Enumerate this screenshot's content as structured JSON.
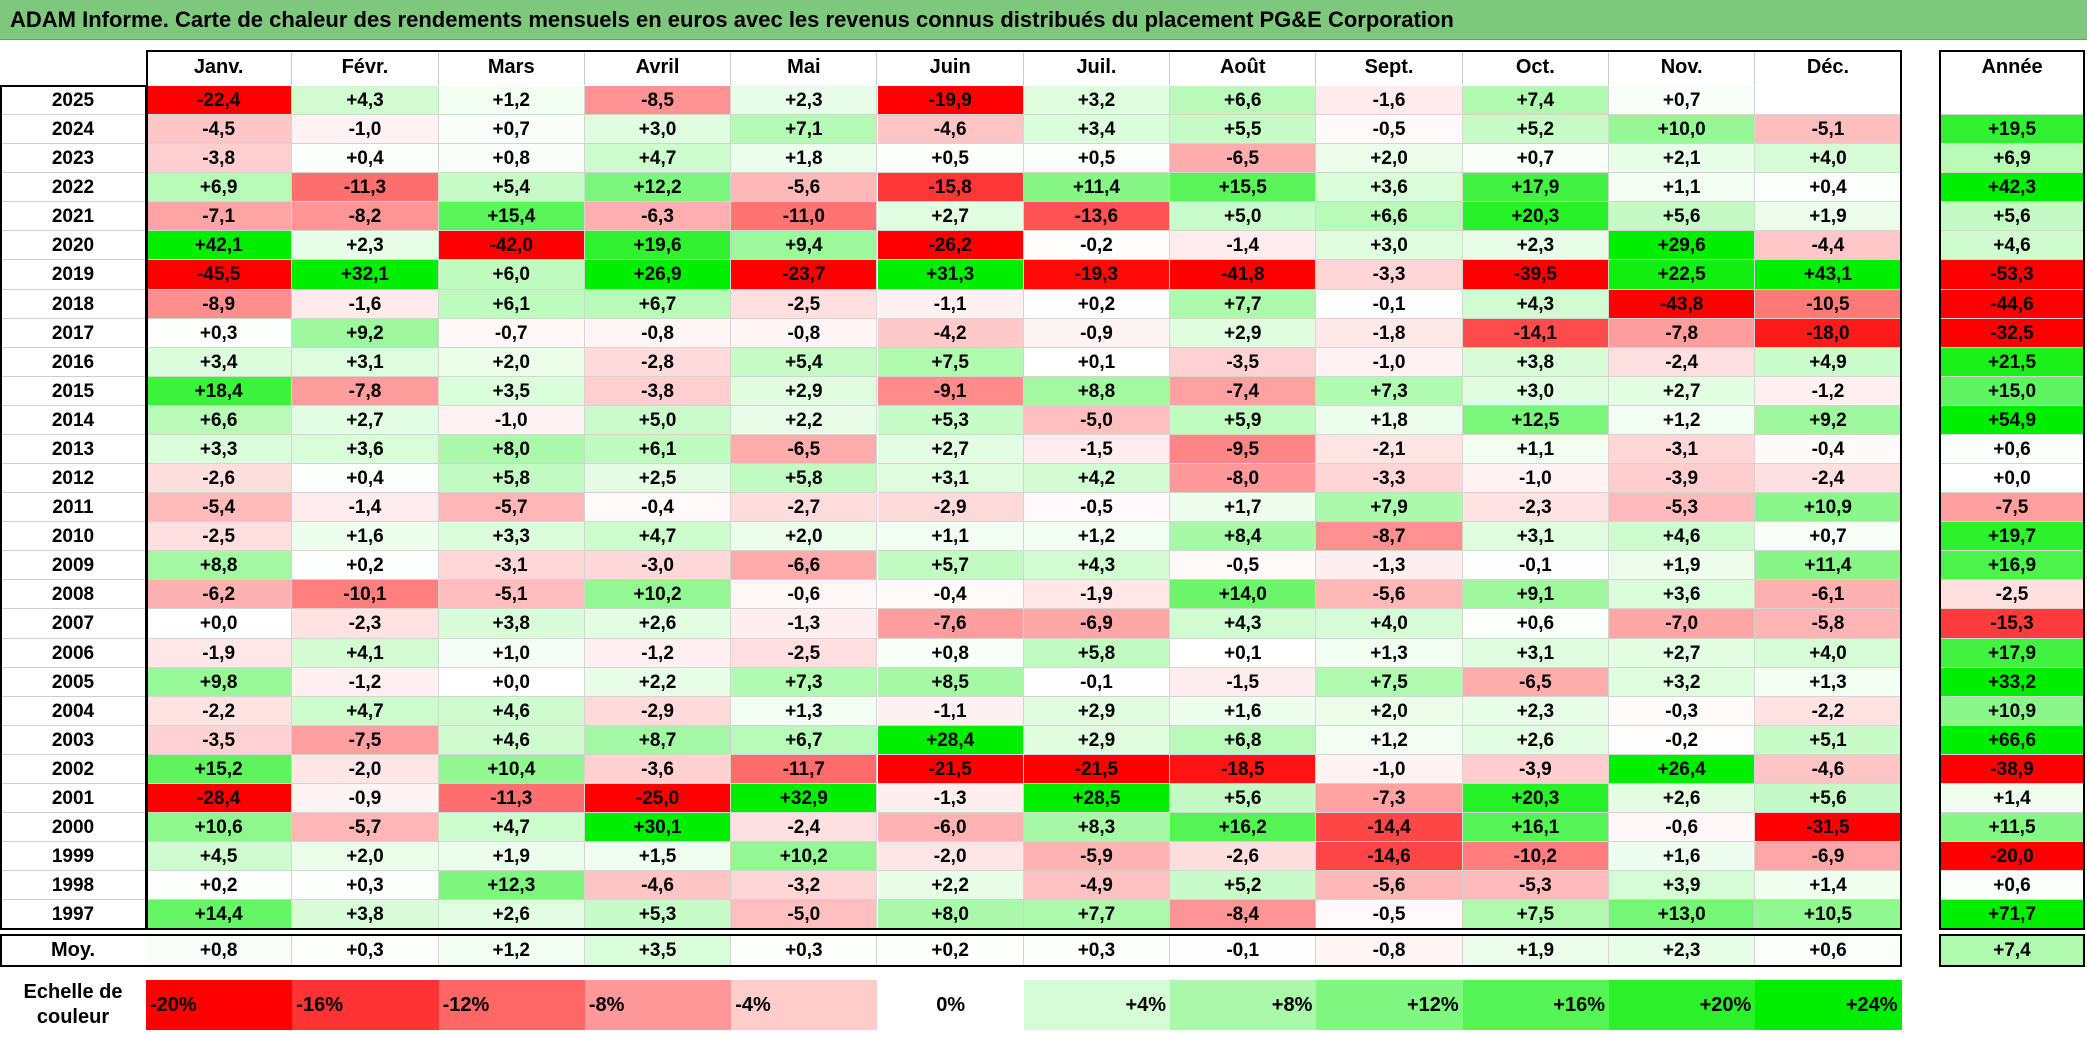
{
  "title": "ADAM Informe. Carte de chaleur des rendements mensuels en euros avec les revenus connus distribués du placement PG&E Corporation",
  "chart_data": {
    "type": "heatmap",
    "title": "ADAM Informe. Carte de chaleur des rendements mensuels en euros avec les revenus connus distribués du placement PG&E Corporation",
    "columns": [
      "Janv.",
      "Févr.",
      "Mars",
      "Avril",
      "Mai",
      "Juin",
      "Juil.",
      "Août",
      "Sept.",
      "Oct.",
      "Nov.",
      "Déc."
    ],
    "year_column_label": "Année",
    "rows": [
      {
        "year": "2025",
        "months": [
          "-22,4",
          "+4,3",
          "+1,2",
          "-8,5",
          "+2,3",
          "-19,9",
          "+3,2",
          "+6,6",
          "-1,6",
          "+7,4",
          "+0,7",
          ""
        ],
        "annual": ""
      },
      {
        "year": "2024",
        "months": [
          "-4,5",
          "-1,0",
          "+0,7",
          "+3,0",
          "+7,1",
          "-4,6",
          "+3,4",
          "+5,5",
          "-0,5",
          "+5,2",
          "+10,0",
          "-5,1"
        ],
        "annual": "+19,5"
      },
      {
        "year": "2023",
        "months": [
          "-3,8",
          "+0,4",
          "+0,8",
          "+4,7",
          "+1,8",
          "+0,5",
          "+0,5",
          "-6,5",
          "+2,0",
          "+0,7",
          "+2,1",
          "+4,0"
        ],
        "annual": "+6,9"
      },
      {
        "year": "2022",
        "months": [
          "+6,9",
          "-11,3",
          "+5,4",
          "+12,2",
          "-5,6",
          "-15,8",
          "+11,4",
          "+15,5",
          "+3,6",
          "+17,9",
          "+1,1",
          "+0,4"
        ],
        "annual": "+42,3"
      },
      {
        "year": "2021",
        "months": [
          "-7,1",
          "-8,2",
          "+15,4",
          "-6,3",
          "-11,0",
          "+2,7",
          "-13,6",
          "+5,0",
          "+6,6",
          "+20,3",
          "+5,6",
          "+1,9"
        ],
        "annual": "+5,6"
      },
      {
        "year": "2020",
        "months": [
          "+42,1",
          "+2,3",
          "-42,0",
          "+19,6",
          "+9,4",
          "-26,2",
          "-0,2",
          "-1,4",
          "+3,0",
          "+2,3",
          "+29,6",
          "-4,4"
        ],
        "annual": "+4,6"
      },
      {
        "year": "2019",
        "months": [
          "-45,5",
          "+32,1",
          "+6,0",
          "+26,9",
          "-23,7",
          "+31,3",
          "-19,3",
          "-41,8",
          "-3,3",
          "-39,5",
          "+22,5",
          "+43,1"
        ],
        "annual": "-53,3"
      },
      {
        "year": "2018",
        "months": [
          "-8,9",
          "-1,6",
          "+6,1",
          "+6,7",
          "-2,5",
          "-1,1",
          "+0,2",
          "+7,7",
          "-0,1",
          "+4,3",
          "-43,8",
          "-10,5"
        ],
        "annual": "-44,6"
      },
      {
        "year": "2017",
        "months": [
          "+0,3",
          "+9,2",
          "-0,7",
          "-0,8",
          "-0,8",
          "-4,2",
          "-0,9",
          "+2,9",
          "-1,8",
          "-14,1",
          "-7,8",
          "-18,0"
        ],
        "annual": "-32,5"
      },
      {
        "year": "2016",
        "months": [
          "+3,4",
          "+3,1",
          "+2,0",
          "-2,8",
          "+5,4",
          "+7,5",
          "+0,1",
          "-3,5",
          "-1,0",
          "+3,8",
          "-2,4",
          "+4,9"
        ],
        "annual": "+21,5"
      },
      {
        "year": "2015",
        "months": [
          "+18,4",
          "-7,8",
          "+3,5",
          "-3,8",
          "+2,9",
          "-9,1",
          "+8,8",
          "-7,4",
          "+7,3",
          "+3,0",
          "+2,7",
          "-1,2"
        ],
        "annual": "+15,0"
      },
      {
        "year": "2014",
        "months": [
          "+6,6",
          "+2,7",
          "-1,0",
          "+5,0",
          "+2,2",
          "+5,3",
          "-5,0",
          "+5,9",
          "+1,8",
          "+12,5",
          "+1,2",
          "+9,2"
        ],
        "annual": "+54,9"
      },
      {
        "year": "2013",
        "months": [
          "+3,3",
          "+3,6",
          "+8,0",
          "+6,1",
          "-6,5",
          "+2,7",
          "-1,5",
          "-9,5",
          "-2,1",
          "+1,1",
          "-3,1",
          "-0,4"
        ],
        "annual": "+0,6"
      },
      {
        "year": "2012",
        "months": [
          "-2,6",
          "+0,4",
          "+5,8",
          "+2,5",
          "+5,8",
          "+3,1",
          "+4,2",
          "-8,0",
          "-3,3",
          "-1,0",
          "-3,9",
          "-2,4"
        ],
        "annual": "+0,0"
      },
      {
        "year": "2011",
        "months": [
          "-5,4",
          "-1,4",
          "-5,7",
          "-0,4",
          "-2,7",
          "-2,9",
          "-0,5",
          "+1,7",
          "+7,9",
          "-2,3",
          "-5,3",
          "+10,9"
        ],
        "annual": "-7,5"
      },
      {
        "year": "2010",
        "months": [
          "-2,5",
          "+1,6",
          "+3,3",
          "+4,7",
          "+2,0",
          "+1,1",
          "+1,2",
          "+8,4",
          "-8,7",
          "+3,1",
          "+4,6",
          "+0,7"
        ],
        "annual": "+19,7"
      },
      {
        "year": "2009",
        "months": [
          "+8,8",
          "+0,2",
          "-3,1",
          "-3,0",
          "-6,6",
          "+5,7",
          "+4,3",
          "-0,5",
          "-1,3",
          "-0,1",
          "+1,9",
          "+11,4"
        ],
        "annual": "+16,9"
      },
      {
        "year": "2008",
        "months": [
          "-6,2",
          "-10,1",
          "-5,1",
          "+10,2",
          "-0,6",
          "-0,4",
          "-1,9",
          "+14,0",
          "-5,6",
          "+9,1",
          "+3,6",
          "-6,1"
        ],
        "annual": "-2,5"
      },
      {
        "year": "2007",
        "months": [
          "+0,0",
          "-2,3",
          "+3,8",
          "+2,6",
          "-1,3",
          "-7,6",
          "-6,9",
          "+4,3",
          "+4,0",
          "+0,6",
          "-7,0",
          "-5,8"
        ],
        "annual": "-15,3"
      },
      {
        "year": "2006",
        "months": [
          "-1,9",
          "+4,1",
          "+1,0",
          "-1,2",
          "-2,5",
          "+0,8",
          "+5,8",
          "+0,1",
          "+1,3",
          "+3,1",
          "+2,7",
          "+4,0"
        ],
        "annual": "+17,9"
      },
      {
        "year": "2005",
        "months": [
          "+9,8",
          "-1,2",
          "+0,0",
          "+2,2",
          "+7,3",
          "+8,5",
          "-0,1",
          "-1,5",
          "+7,5",
          "-6,5",
          "+3,2",
          "+1,3"
        ],
        "annual": "+33,2"
      },
      {
        "year": "2004",
        "months": [
          "-2,2",
          "+4,7",
          "+4,6",
          "-2,9",
          "+1,3",
          "-1,1",
          "+2,9",
          "+1,6",
          "+2,0",
          "+2,3",
          "-0,3",
          "-2,2"
        ],
        "annual": "+10,9"
      },
      {
        "year": "2003",
        "months": [
          "-3,5",
          "-7,5",
          "+4,6",
          "+8,7",
          "+6,7",
          "+28,4",
          "+2,9",
          "+6,8",
          "+1,2",
          "+2,6",
          "-0,2",
          "+5,1"
        ],
        "annual": "+66,6"
      },
      {
        "year": "2002",
        "months": [
          "+15,2",
          "-2,0",
          "+10,4",
          "-3,6",
          "-11,7",
          "-21,5",
          "-21,5",
          "-18,5",
          "-1,0",
          "-3,9",
          "+26,4",
          "-4,6"
        ],
        "annual": "-38,9"
      },
      {
        "year": "2001",
        "months": [
          "-28,4",
          "-0,9",
          "-11,3",
          "-25,0",
          "+32,9",
          "-1,3",
          "+28,5",
          "+5,6",
          "-7,3",
          "+20,3",
          "+2,6",
          "+5,6"
        ],
        "annual": "+1,4"
      },
      {
        "year": "2000",
        "months": [
          "+10,6",
          "-5,7",
          "+4,7",
          "+30,1",
          "-2,4",
          "-6,0",
          "+8,3",
          "+16,2",
          "-14,4",
          "+16,1",
          "-0,6",
          "-31,5"
        ],
        "annual": "+11,5"
      },
      {
        "year": "1999",
        "months": [
          "+4,5",
          "+2,0",
          "+1,9",
          "+1,5",
          "+10,2",
          "-2,0",
          "-5,9",
          "-2,6",
          "-14,6",
          "-10,2",
          "+1,6",
          "-6,9"
        ],
        "annual": "-20,0"
      },
      {
        "year": "1998",
        "months": [
          "+0,2",
          "+0,3",
          "+12,3",
          "-4,6",
          "-3,2",
          "+2,2",
          "-4,9",
          "+5,2",
          "-5,6",
          "-5,3",
          "+3,9",
          "+1,4"
        ],
        "annual": "+0,6"
      },
      {
        "year": "1997",
        "months": [
          "+14,4",
          "+3,8",
          "+2,6",
          "+5,3",
          "-5,0",
          "+8,0",
          "+7,7",
          "-8,4",
          "-0,5",
          "+7,5",
          "+13,0",
          "+10,5"
        ],
        "annual": "+71,7"
      }
    ],
    "average": {
      "label": "Moy.",
      "months": [
        "+0,8",
        "+0,3",
        "+1,2",
        "+3,5",
        "+0,3",
        "+0,2",
        "+0,3",
        "-0,1",
        "-0,8",
        "+1,9",
        "+2,3",
        "+0,6"
      ],
      "annual": "+7,4"
    },
    "color_scale": {
      "label": "Echelle de couleur",
      "stops": [
        {
          "label": "-20%",
          "value": -20
        },
        {
          "label": "-16%",
          "value": -16
        },
        {
          "label": "-12%",
          "value": -12
        },
        {
          "label": "-8%",
          "value": -8
        },
        {
          "label": "-4%",
          "value": -4
        },
        {
          "label": "0%",
          "value": 0
        },
        {
          "label": "+4%",
          "value": 4
        },
        {
          "label": "+8%",
          "value": 8
        },
        {
          "label": "+12%",
          "value": 12
        },
        {
          "label": "+16%",
          "value": 16
        },
        {
          "label": "+20%",
          "value": 20
        },
        {
          "label": "+24%",
          "value": 24
        }
      ],
      "negative_color": "#ff0000",
      "neutral_color": "#ffffff",
      "positive_color": "#00ee00"
    }
  }
}
